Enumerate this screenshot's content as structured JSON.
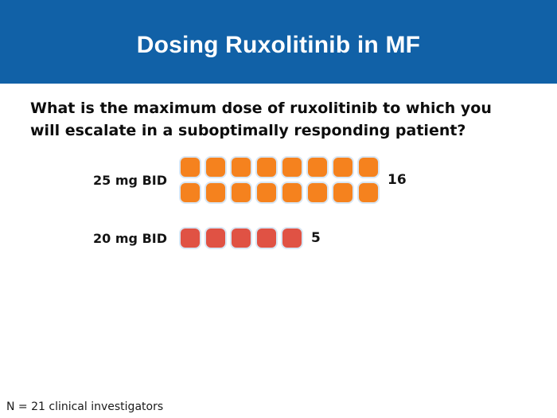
{
  "slide": {
    "title": "Dosing Ruxolitinib in MF",
    "question_line1": "What is the maximum dose of ruxolitinib to which you",
    "question_line2": "will escalate in a suboptimally responding patient?",
    "footnote": "N = 21 clinical investigators"
  },
  "colors": {
    "banner_bg": "#1161A7",
    "title_text": "#FFFFFF",
    "orange_unit": "#F5821E",
    "red_unit": "#E05244",
    "unit_border": "#D8E6F3",
    "body_text": "#0D0D0D"
  },
  "chart_data": {
    "type": "pictograph",
    "title": "Dosing Ruxolitinib in MF",
    "question": "What is the maximum dose of ruxolitinib to which you will escalate in a suboptimally responding patient?",
    "categories": [
      "25 mg BID",
      "20 mg BID"
    ],
    "values": [
      16,
      5
    ],
    "value_labels": [
      "16",
      "5"
    ],
    "series_colors": [
      "#F5821E",
      "#E05244"
    ],
    "units_per_row": 8,
    "unit_shape": "rounded-square",
    "legend": "none",
    "note": "N = 21 clinical investigators"
  }
}
